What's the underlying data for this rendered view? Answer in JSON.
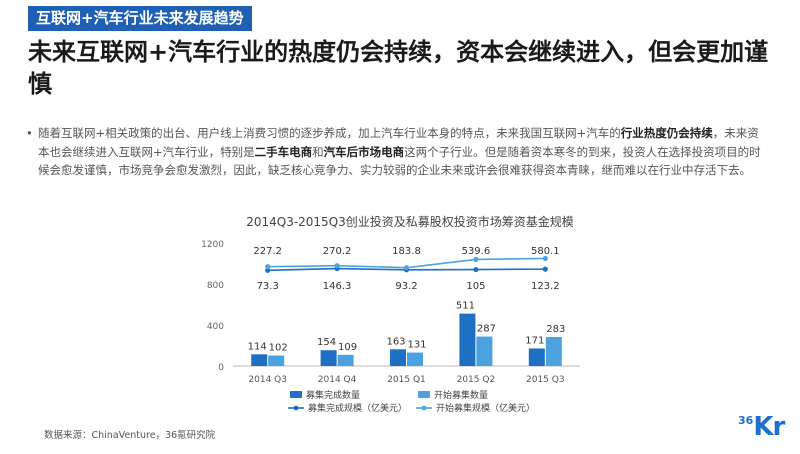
{
  "header": {
    "section_tag": "互联网+汽车行业未来发展趋势",
    "headline": "未来互联网+汽车行业的热度仍会持续，资本会继续进入，但会更加谨慎"
  },
  "body": {
    "p1": "随着互联网+相关政策的出台、用户线上消费习惯的逐步养成，加上汽车行业本身的特点，未来我国互联网+汽车的",
    "p1_bold": "行业热度仍会持续",
    "p2": "，未来资本也会继续进入互联网+汽车行业，特别是",
    "p2_bold1": "二手车电商",
    "p2_mid": "和",
    "p2_bold2": "汽车后市场电商",
    "p3": "这两个子行业。但是随着资本寒冬的到来，投资人在选择投资项目的时候会愈发谨慎，市场竞争会愈发激烈，因此，缺乏核心竞争力、实力较弱的企业未来或许会很难获得资本青睐，继而难以在行业中存活下去。"
  },
  "chart_data": {
    "type": "bar",
    "title": "2014Q3-2015Q3创业投资及私募股权投资市场筹资基金规模",
    "categories": [
      "2014 Q3",
      "2014 Q4",
      "2015 Q1",
      "2015 Q2",
      "2015 Q3"
    ],
    "ylim": [
      0,
      1200
    ],
    "yticks": [
      "0",
      "400",
      "800",
      "1200"
    ],
    "series": [
      {
        "name": "募集完成数量",
        "type": "bar",
        "color": "#1f6fc5",
        "values": [
          114,
          154,
          163,
          511,
          171
        ]
      },
      {
        "name": "开始募集数量",
        "type": "bar",
        "color": "#4aa3e0",
        "values": [
          102,
          109,
          131,
          287,
          283
        ]
      },
      {
        "name": "募集完成规模（亿美元）",
        "type": "line",
        "color": "#1f6fc5",
        "values": [
          73.3,
          146.3,
          93.2,
          105,
          123.2
        ]
      },
      {
        "name": "开始募集规模（亿美元）",
        "type": "line",
        "color": "#4aa3e0",
        "values": [
          227.2,
          270.2,
          183.8,
          539.6,
          580.1
        ]
      }
    ],
    "bar_labels": [
      [
        "114",
        "154",
        "163",
        "511",
        "171"
      ],
      [
        "102",
        "109",
        "131",
        "287",
        "283"
      ]
    ],
    "line_labels": [
      [
        "73.3",
        "146.3",
        "93.2",
        "105",
        "123.2"
      ],
      [
        "227.2",
        "270.2",
        "183.8",
        "539.6",
        "580.1"
      ]
    ],
    "legend_position": "bottom"
  },
  "footer": {
    "source": "数据来源：ChinaVenture，36氪研究院",
    "logo_num": "36",
    "logo_kr": "Kr"
  }
}
